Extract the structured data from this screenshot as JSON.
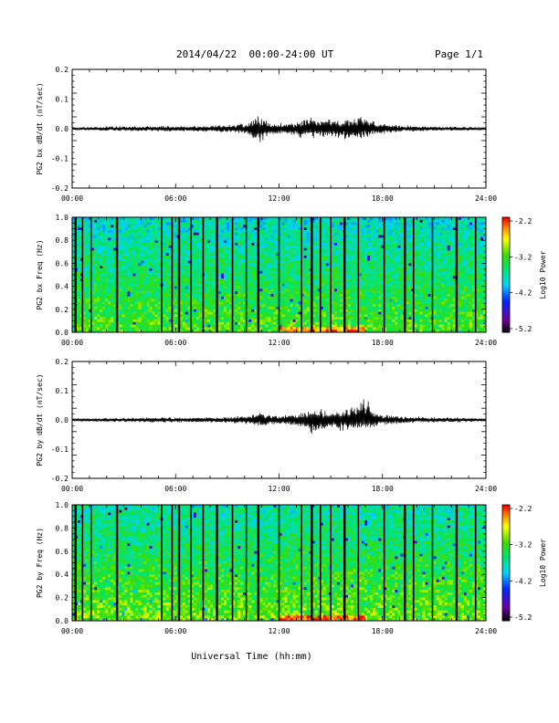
{
  "header": {
    "date_range": "2014/04/22  00:00-24:00 UT",
    "page": "Page 1/1"
  },
  "chart_data": [
    {
      "type": "line",
      "ylabel": "PG2 bx dB/dt (nT/sec)",
      "ylim": [
        -0.2,
        0.2
      ],
      "yticks": [
        "0.2",
        "0.1",
        "0.0",
        "-0.1",
        "-0.2"
      ],
      "xlim": [
        0,
        24
      ],
      "xticks": [
        "00:00",
        "06:00",
        "12:00",
        "18:00",
        "24:00"
      ],
      "grid": false,
      "series": [
        {
          "x": [
            0,
            1,
            2,
            3,
            4,
            5,
            6,
            7,
            8,
            9,
            10,
            10.5,
            11,
            11.5,
            12,
            13,
            13.5,
            14,
            14.5,
            15,
            15.5,
            16,
            16.5,
            17,
            17.5,
            18,
            19,
            20,
            21,
            22,
            23,
            24
          ],
          "upper": [
            0.005,
            0.006,
            0.008,
            0.009,
            0.009,
            0.01,
            0.01,
            0.01,
            0.012,
            0.015,
            0.02,
            0.035,
            0.055,
            0.025,
            0.018,
            0.025,
            0.035,
            0.045,
            0.04,
            0.03,
            0.03,
            0.035,
            0.04,
            0.05,
            0.03,
            0.02,
            0.013,
            0.01,
            0.009,
            0.008,
            0.007,
            0.005
          ],
          "lower": [
            -0.005,
            -0.006,
            -0.008,
            -0.009,
            -0.009,
            -0.01,
            -0.01,
            -0.01,
            -0.012,
            -0.015,
            -0.02,
            -0.04,
            -0.055,
            -0.025,
            -0.018,
            -0.03,
            -0.035,
            -0.04,
            -0.035,
            -0.03,
            -0.035,
            -0.04,
            -0.045,
            -0.03,
            -0.025,
            -0.02,
            -0.013,
            -0.01,
            -0.009,
            -0.008,
            -0.007,
            -0.005
          ]
        }
      ]
    },
    {
      "type": "heatmap",
      "ylabel": "PG2 bx Freq (Hz)",
      "ylim": [
        0.0,
        1.0
      ],
      "yticks": [
        "1.0",
        "0.8",
        "0.6",
        "0.4",
        "0.2",
        "0.0"
      ],
      "xlim": [
        0,
        24
      ],
      "xticks": [
        "00:00",
        "06:00",
        "12:00",
        "18:00",
        "24:00"
      ],
      "colorbar": {
        "label": "Log10 Power",
        "ticks": [
          "-2.2",
          "-3.2",
          "-4.2",
          "-5.2"
        ],
        "range": [
          -5.2,
          -2.2
        ]
      },
      "gaps_x": [
        0.2,
        0.6,
        1.1,
        2.6,
        5.2,
        5.8,
        6.2,
        6.9,
        7.6,
        8.4,
        9.3,
        10.1,
        10.8,
        12.0,
        13.3,
        13.9,
        14.4,
        15.0,
        15.8,
        16.6,
        18.1,
        19.3,
        19.8,
        20.9,
        22.3,
        23.4
      ],
      "quiet_level": -3.4
    },
    {
      "type": "line",
      "ylabel": "PG2 by dB/dt (nT/sec)",
      "ylim": [
        -0.2,
        0.2
      ],
      "yticks": [
        "0.2",
        "0.1",
        "0.0",
        "-0.1",
        "-0.2"
      ],
      "xlim": [
        0,
        24
      ],
      "xticks": [
        "00:00",
        "06:00",
        "12:00",
        "18:00",
        "24:00"
      ],
      "grid": false,
      "series": [
        {
          "x": [
            0,
            1,
            2,
            3,
            4,
            5,
            6,
            7,
            8,
            9,
            10,
            10.5,
            11,
            11.5,
            12,
            13,
            13.5,
            14,
            14.5,
            15,
            15.5,
            16,
            16.5,
            17,
            17.5,
            18,
            19,
            20,
            21,
            22,
            23,
            24
          ],
          "upper": [
            0.006,
            0.006,
            0.007,
            0.008,
            0.009,
            0.01,
            0.01,
            0.01,
            0.01,
            0.012,
            0.015,
            0.025,
            0.03,
            0.02,
            0.015,
            0.025,
            0.035,
            0.045,
            0.04,
            0.035,
            0.04,
            0.045,
            0.05,
            0.08,
            0.035,
            0.02,
            0.015,
            0.012,
            0.01,
            0.009,
            0.008,
            0.006
          ],
          "lower": [
            -0.006,
            -0.006,
            -0.007,
            -0.008,
            -0.009,
            -0.01,
            -0.01,
            -0.01,
            -0.01,
            -0.012,
            -0.015,
            -0.02,
            -0.025,
            -0.018,
            -0.015,
            -0.025,
            -0.035,
            -0.06,
            -0.04,
            -0.035,
            -0.04,
            -0.045,
            -0.04,
            -0.03,
            -0.025,
            -0.02,
            -0.015,
            -0.012,
            -0.01,
            -0.009,
            -0.008,
            -0.006
          ]
        }
      ]
    },
    {
      "type": "heatmap",
      "ylabel": "PG2 by Freq (Hz)",
      "xlabel": "Universal Time (hh:mm)",
      "ylim": [
        0.0,
        1.0
      ],
      "yticks": [
        "1.0",
        "0.8",
        "0.6",
        "0.4",
        "0.2",
        "0.0"
      ],
      "xlim": [
        0,
        24
      ],
      "xticks": [
        "00:00",
        "06:00",
        "12:00",
        "18:00",
        "24:00"
      ],
      "colorbar": {
        "label": "Log10 Power",
        "ticks": [
          "-2.2",
          "-3.2",
          "-4.2",
          "-5.2"
        ],
        "range": [
          -5.2,
          -2.2
        ]
      },
      "gaps_x": [
        0.2,
        0.6,
        1.1,
        2.6,
        5.2,
        5.8,
        6.2,
        6.9,
        7.6,
        8.4,
        9.3,
        10.1,
        10.8,
        12.0,
        13.3,
        13.9,
        14.4,
        15.0,
        15.8,
        16.6,
        18.1,
        19.3,
        19.8,
        20.9,
        22.3,
        23.4
      ],
      "quiet_level": -3.3
    }
  ]
}
